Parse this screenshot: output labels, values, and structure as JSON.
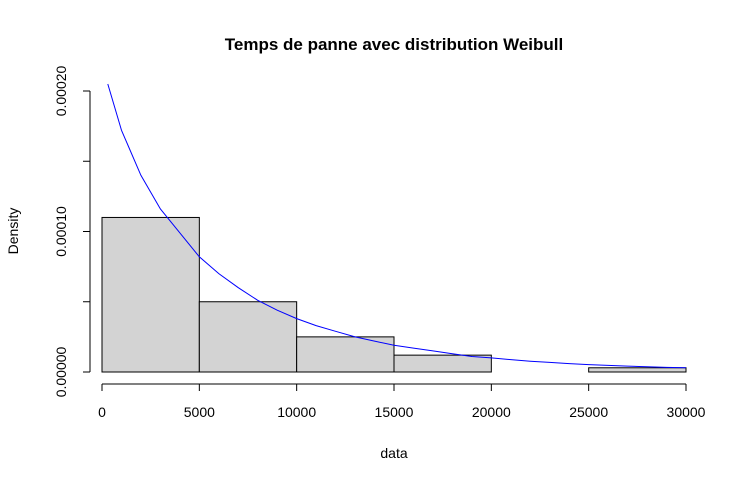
{
  "chart_data": {
    "type": "bar",
    "title": "Temps de panne avec distribution Weibull",
    "xlabel": "data",
    "ylabel": "Density",
    "xlim": [
      0,
      30000
    ],
    "ylim": [
      0,
      0.0002
    ],
    "x_ticks": [
      "0",
      "5000",
      "10000",
      "15000",
      "20000",
      "25000",
      "30000"
    ],
    "y_ticks": [
      "0.00000",
      "0.00010",
      "0.00020"
    ],
    "bins": [
      {
        "from": 0,
        "to": 5000,
        "density": 0.00011
      },
      {
        "from": 5000,
        "to": 10000,
        "density": 5e-05
      },
      {
        "from": 10000,
        "to": 15000,
        "density": 2.5e-05
      },
      {
        "from": 15000,
        "to": 20000,
        "density": 1.2e-05
      },
      {
        "from": 20000,
        "to": 25000,
        "density": 0.0
      },
      {
        "from": 25000,
        "to": 30000,
        "density": 3e-06
      }
    ],
    "bar_fill": "#d3d3d3",
    "curve": {
      "color": "#0000ff",
      "points": [
        [
          300,
          0.000205
        ],
        [
          1000,
          0.000172
        ],
        [
          2000,
          0.00014
        ],
        [
          3000,
          0.000116
        ],
        [
          4000,
          9.9e-05
        ],
        [
          5000,
          8.2e-05
        ],
        [
          6000,
          7e-05
        ],
        [
          7000,
          6e-05
        ],
        [
          8000,
          5.1e-05
        ],
        [
          9000,
          4.4e-05
        ],
        [
          10000,
          3.8e-05
        ],
        [
          11000,
          3.3e-05
        ],
        [
          12000,
          2.9e-05
        ],
        [
          13000,
          2.5e-05
        ],
        [
          14000,
          2.2e-05
        ],
        [
          15000,
          1.9e-05
        ],
        [
          16000,
          1.7e-05
        ],
        [
          17000,
          1.5e-05
        ],
        [
          18000,
          1.3e-05
        ],
        [
          19000,
          1.1e-05
        ],
        [
          20000,
          1e-05
        ],
        [
          21000,
          8.8e-06
        ],
        [
          22000,
          7.7e-06
        ],
        [
          23000,
          6.8e-06
        ],
        [
          24000,
          6e-06
        ],
        [
          25000,
          5.3e-06
        ],
        [
          26000,
          4.7e-06
        ],
        [
          27000,
          4.2e-06
        ],
        [
          28000,
          3.7e-06
        ],
        [
          29000,
          3.3e-06
        ],
        [
          30000,
          3e-06
        ]
      ]
    }
  }
}
